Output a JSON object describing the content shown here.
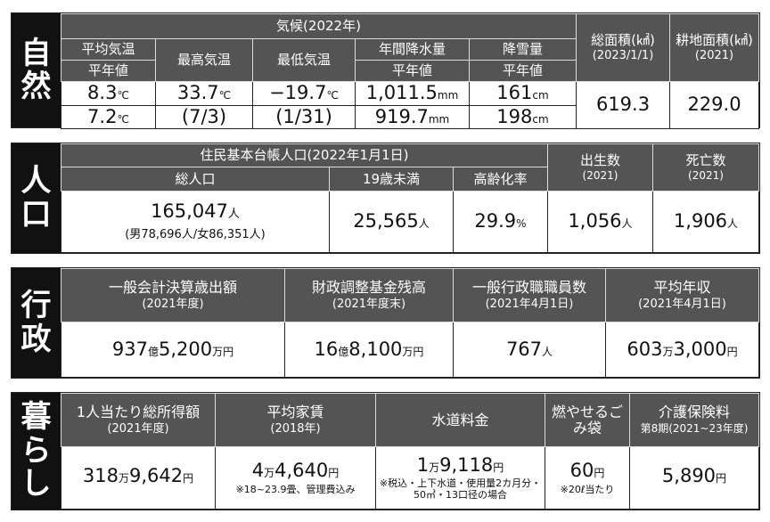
{
  "nature": {
    "label": [
      "自",
      "然"
    ],
    "climate": "気候(2022年)",
    "cols": [
      {
        "h1": "平均気温",
        "h2": "平年値",
        "v1": "8.3",
        "u1": "℃",
        "v2": "7.2",
        "u2": "℃"
      },
      {
        "h1": "最高気温",
        "v1": "33.7",
        "u1": "℃",
        "v2": "(7/3)"
      },
      {
        "h1": "最低気温",
        "v1": "−19.7",
        "u1": "℃",
        "v2": "(1/31)"
      },
      {
        "h1": "年間降水量",
        "h2": "平年値",
        "v1": "1,011.5",
        "u1": "mm",
        "v2": "919.7",
        "u2": "mm"
      },
      {
        "h1": "降雪量",
        "h2": "平年値",
        "v1": "161",
        "u1": "cm",
        "v2": "198",
        "u2": "cm"
      }
    ],
    "area": {
      "h": "総面積(㎢)",
      "sub": "(2023/1/1)",
      "v": "619.3"
    },
    "farm": {
      "h": "耕地面積(㎢)",
      "sub": "(2021)",
      "v": "229.0"
    }
  },
  "population": {
    "label": [
      "人",
      "口"
    ],
    "registry": "住民基本台帳人口(2022年1月1日)",
    "total": {
      "h": "総人口",
      "v": "165,047",
      "u": "人",
      "sub": "(男78,696人/女86,351人)"
    },
    "under19": {
      "h": "19歳未満",
      "v": "25,565",
      "u": "人"
    },
    "aging": {
      "h": "高齢化率",
      "v": "29.9",
      "u": "%"
    },
    "births": {
      "h": "出生数",
      "sub": "(2021)",
      "v": "1,056",
      "u": "人"
    },
    "deaths": {
      "h": "死亡数",
      "sub": "(2021)",
      "v": "1,906",
      "u": "人"
    }
  },
  "admin": {
    "label": [
      "行",
      "政"
    ],
    "cols": [
      {
        "h": "一般会計決算歳出額",
        "sub": "(2021年度)",
        "parts": [
          "937",
          "億",
          "5,200",
          "万円"
        ]
      },
      {
        "h": "財政調整基金残高",
        "sub": "(2021年度末)",
        "parts": [
          "16",
          "億",
          "8,100",
          "万円"
        ]
      },
      {
        "h": "一般行政職職員数",
        "sub": "(2021年4月1日)",
        "parts": [
          "767",
          "人",
          "",
          ""
        ]
      },
      {
        "h": "平均年収",
        "sub": "(2021年4月1日)",
        "parts": [
          "603",
          "万",
          "3,000",
          "円"
        ]
      }
    ]
  },
  "life": {
    "label": [
      "暮",
      "ら",
      "し"
    ],
    "cols": [
      {
        "h": "1人当たり総所得額",
        "sub": "(2021年度)",
        "parts": [
          "318",
          "万",
          "9,642",
          "円"
        ],
        "note": ""
      },
      {
        "h": "平均家賃",
        "sub": "(2018年)",
        "parts": [
          "4",
          "万",
          "4,640",
          "円"
        ],
        "note": "※18~23.9畳、管理費込み"
      },
      {
        "h": "水道料金",
        "sub": "",
        "parts": [
          "1",
          "万",
          "9,118",
          "円"
        ],
        "note": "※税込・上下水道・使用量2カ月分・50㎥・13口径の場合"
      },
      {
        "h": "燃やせるごみ袋",
        "sub": "",
        "parts": [
          "60",
          "円",
          "",
          ""
        ],
        "note": "※20ℓ当たり"
      },
      {
        "h": "介護保険料",
        "sub": "第8期(2021~23年度)",
        "parts": [
          "5,890",
          "円",
          "",
          ""
        ],
        "note": ""
      }
    ]
  }
}
